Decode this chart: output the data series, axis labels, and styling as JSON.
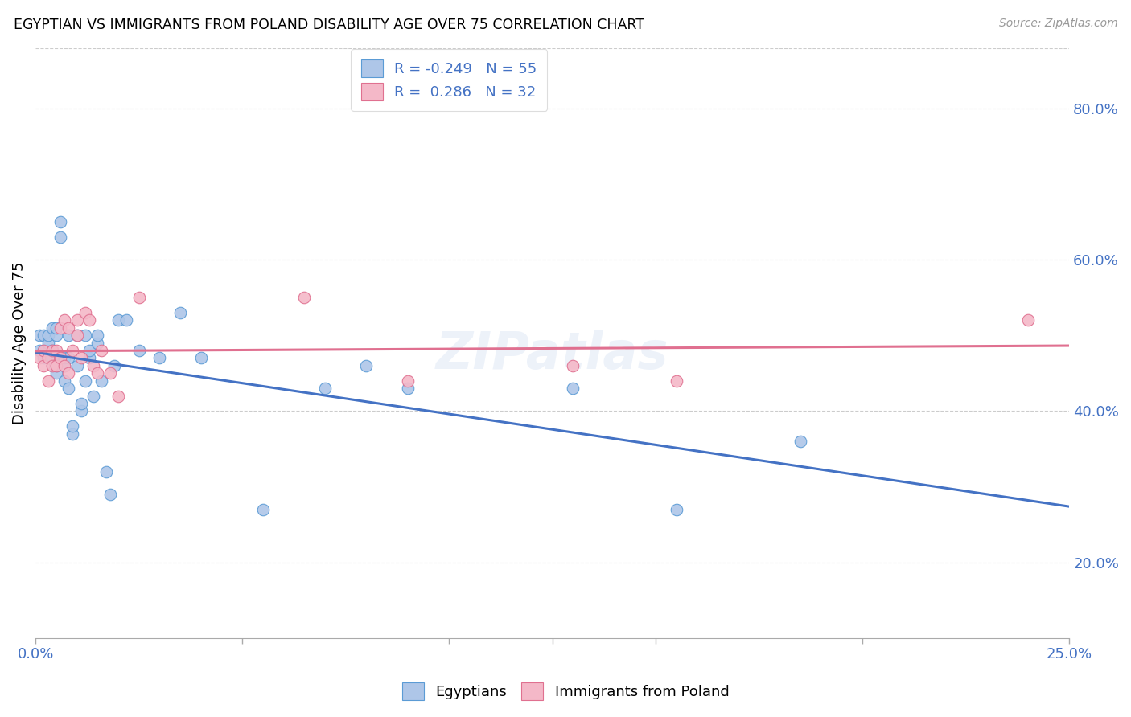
{
  "title": "EGYPTIAN VS IMMIGRANTS FROM POLAND DISABILITY AGE OVER 75 CORRELATION CHART",
  "source": "Source: ZipAtlas.com",
  "ylabel": "Disability Age Over 75",
  "egyptians_color": "#aec6e8",
  "egyptians_edge_color": "#5b9bd5",
  "poland_color": "#f4b8c8",
  "poland_edge_color": "#e07090",
  "egypt_line_color": "#4472c4",
  "poland_line_color": "#e07090",
  "background_color": "#ffffff",
  "watermark": "ZIPatlas",
  "xlim": [
    0.0,
    0.25
  ],
  "ylim": [
    0.1,
    0.88
  ],
  "ytick_vals": [
    0.2,
    0.4,
    0.6,
    0.8
  ],
  "ytick_labels": [
    "20.0%",
    "40.0%",
    "60.0%",
    "80.0%"
  ],
  "xtick_vals": [
    0.0,
    0.05,
    0.1,
    0.125,
    0.15,
    0.2,
    0.25
  ],
  "xtick_labels": [
    "0.0%",
    "",
    "",
    "",
    "",
    "",
    "25.0%"
  ],
  "egypt_R": -0.249,
  "egypt_N": 55,
  "poland_R": 0.286,
  "poland_N": 32,
  "egyptians_x": [
    0.001,
    0.001,
    0.002,
    0.002,
    0.002,
    0.003,
    0.003,
    0.003,
    0.003,
    0.004,
    0.004,
    0.004,
    0.004,
    0.005,
    0.005,
    0.005,
    0.005,
    0.006,
    0.006,
    0.007,
    0.007,
    0.007,
    0.008,
    0.008,
    0.008,
    0.009,
    0.009,
    0.01,
    0.01,
    0.011,
    0.011,
    0.012,
    0.012,
    0.013,
    0.013,
    0.014,
    0.015,
    0.015,
    0.016,
    0.017,
    0.018,
    0.019,
    0.02,
    0.022,
    0.025,
    0.03,
    0.035,
    0.04,
    0.055,
    0.07,
    0.08,
    0.09,
    0.13,
    0.155,
    0.185
  ],
  "egyptians_y": [
    0.48,
    0.5,
    0.48,
    0.47,
    0.5,
    0.47,
    0.48,
    0.49,
    0.5,
    0.46,
    0.47,
    0.48,
    0.51,
    0.45,
    0.46,
    0.5,
    0.51,
    0.63,
    0.65,
    0.44,
    0.46,
    0.47,
    0.43,
    0.47,
    0.5,
    0.37,
    0.38,
    0.46,
    0.5,
    0.4,
    0.41,
    0.44,
    0.5,
    0.47,
    0.48,
    0.42,
    0.49,
    0.5,
    0.44,
    0.32,
    0.29,
    0.46,
    0.52,
    0.52,
    0.48,
    0.47,
    0.53,
    0.47,
    0.27,
    0.43,
    0.46,
    0.43,
    0.43,
    0.27,
    0.36
  ],
  "poland_x": [
    0.001,
    0.002,
    0.002,
    0.003,
    0.003,
    0.004,
    0.004,
    0.005,
    0.005,
    0.006,
    0.006,
    0.007,
    0.007,
    0.008,
    0.008,
    0.009,
    0.01,
    0.01,
    0.011,
    0.012,
    0.013,
    0.014,
    0.015,
    0.016,
    0.018,
    0.02,
    0.025,
    0.065,
    0.09,
    0.13,
    0.155,
    0.24
  ],
  "poland_y": [
    0.47,
    0.46,
    0.48,
    0.44,
    0.47,
    0.46,
    0.48,
    0.46,
    0.48,
    0.47,
    0.51,
    0.46,
    0.52,
    0.45,
    0.51,
    0.48,
    0.5,
    0.52,
    0.47,
    0.53,
    0.52,
    0.46,
    0.45,
    0.48,
    0.45,
    0.42,
    0.55,
    0.55,
    0.44,
    0.46,
    0.44,
    0.52
  ]
}
